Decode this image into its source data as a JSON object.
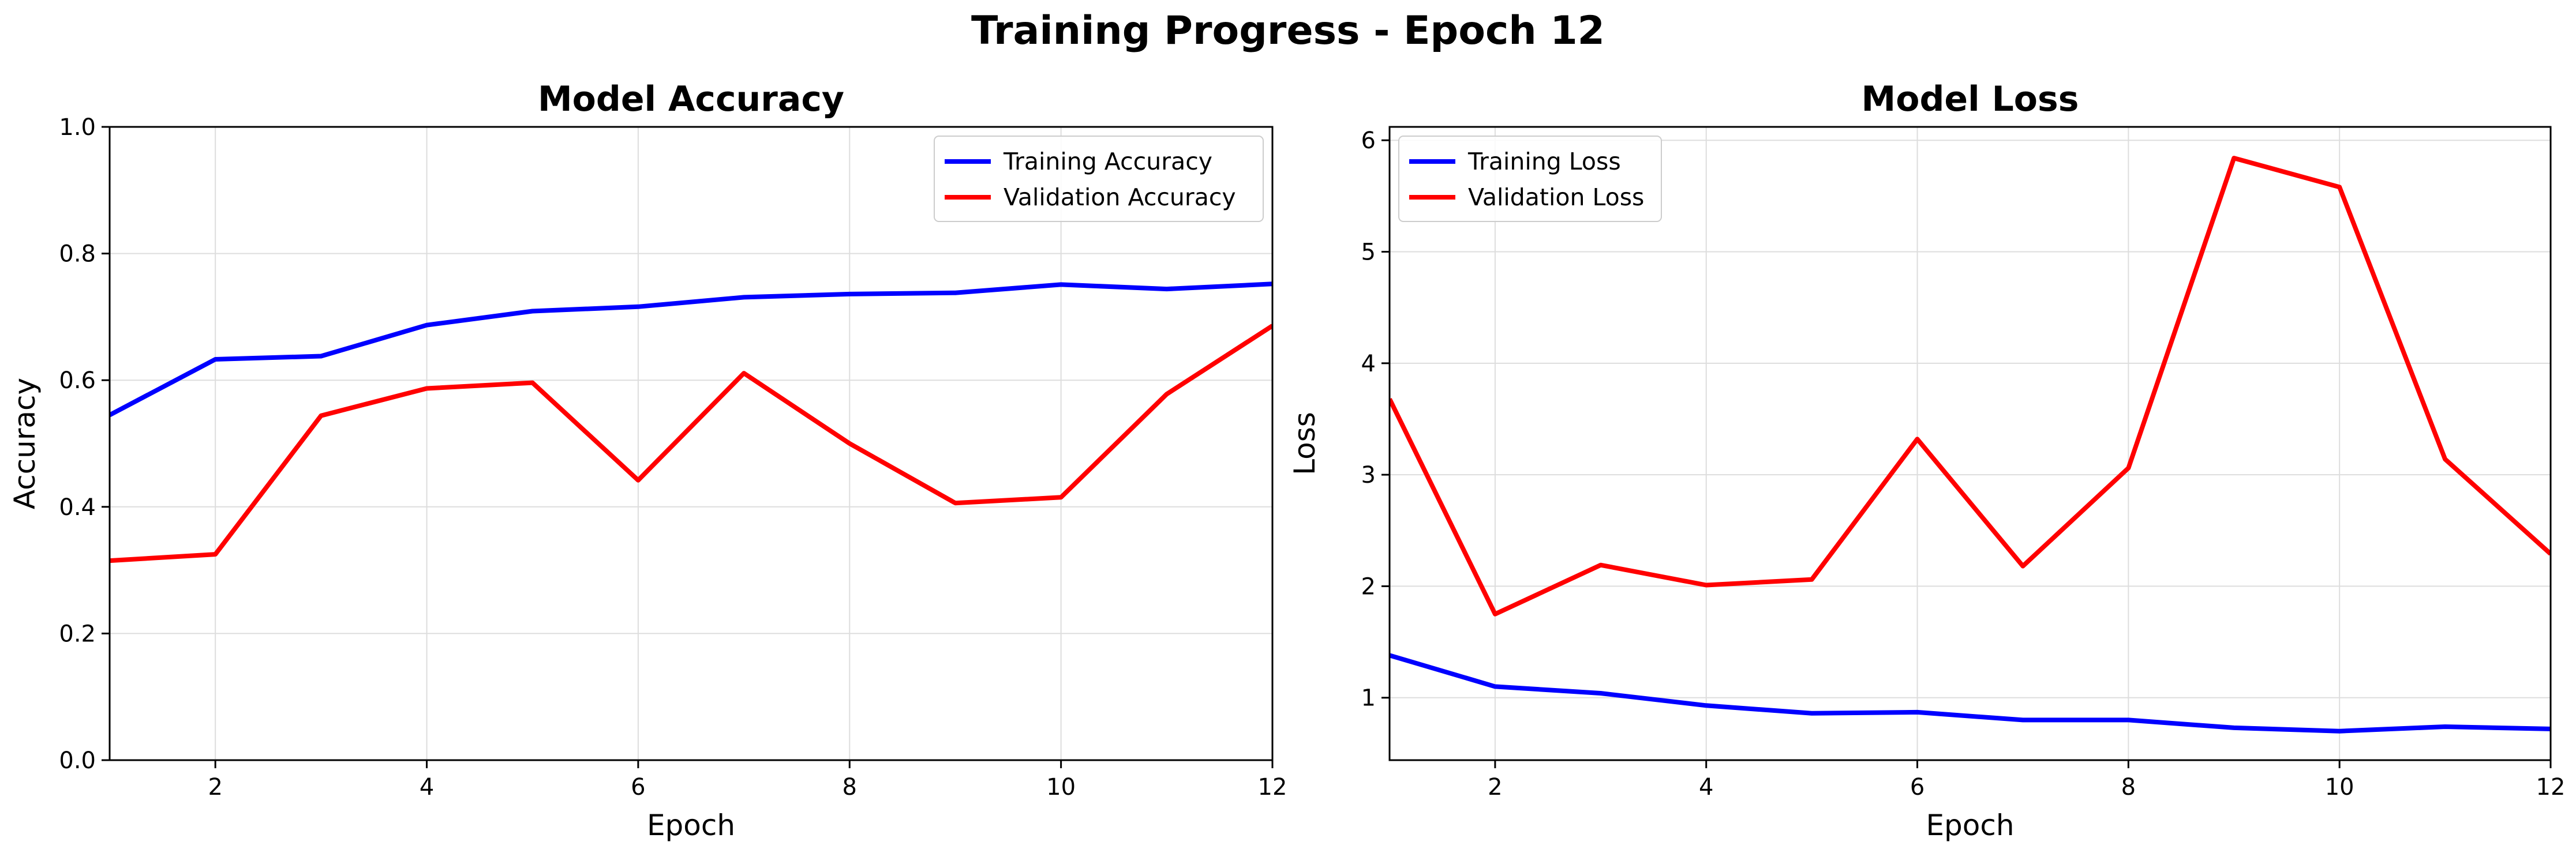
{
  "suptitle": "Training Progress - Epoch 12",
  "chart_data": [
    {
      "type": "line",
      "title": "Model Accuracy",
      "xlabel": "Epoch",
      "ylabel": "Accuracy",
      "xlim": [
        1,
        12
      ],
      "ylim": [
        0,
        1.0
      ],
      "xticks": [
        2,
        4,
        6,
        8,
        10,
        12
      ],
      "yticks": [
        0.0,
        0.2,
        0.4,
        0.6,
        0.8,
        1.0
      ],
      "ytick_decimals": 1,
      "grid": true,
      "legend_position": "upper right",
      "x": [
        1,
        2,
        3,
        4,
        5,
        6,
        7,
        8,
        9,
        10,
        11,
        12
      ],
      "series": [
        {
          "name": "Training Accuracy",
          "color": "#0000ff",
          "values": [
            0.545,
            0.633,
            0.638,
            0.687,
            0.709,
            0.716,
            0.731,
            0.736,
            0.738,
            0.751,
            0.744,
            0.752
          ]
        },
        {
          "name": "Validation Accuracy",
          "color": "#ff0000",
          "values": [
            0.315,
            0.325,
            0.544,
            0.587,
            0.596,
            0.442,
            0.611,
            0.5,
            0.406,
            0.415,
            0.578,
            0.686
          ]
        }
      ]
    },
    {
      "type": "line",
      "title": "Model Loss",
      "xlabel": "Epoch",
      "ylabel": "Loss",
      "xlim": [
        1,
        12
      ],
      "ylim": [
        0.44,
        6.12
      ],
      "xticks": [
        2,
        4,
        6,
        8,
        10,
        12
      ],
      "yticks": [
        1,
        2,
        3,
        4,
        5,
        6
      ],
      "ytick_decimals": 0,
      "grid": true,
      "legend_position": "upper left",
      "x": [
        1,
        2,
        3,
        4,
        5,
        6,
        7,
        8,
        9,
        10,
        11,
        12
      ],
      "series": [
        {
          "name": "Training Loss",
          "color": "#0000ff",
          "values": [
            1.38,
            1.1,
            1.04,
            0.93,
            0.86,
            0.87,
            0.8,
            0.8,
            0.73,
            0.7,
            0.74,
            0.72
          ]
        },
        {
          "name": "Validation Loss",
          "color": "#ff0000",
          "values": [
            3.68,
            1.75,
            2.19,
            2.01,
            2.06,
            3.32,
            2.18,
            3.06,
            5.84,
            5.58,
            3.14,
            2.29
          ]
        }
      ]
    }
  ]
}
